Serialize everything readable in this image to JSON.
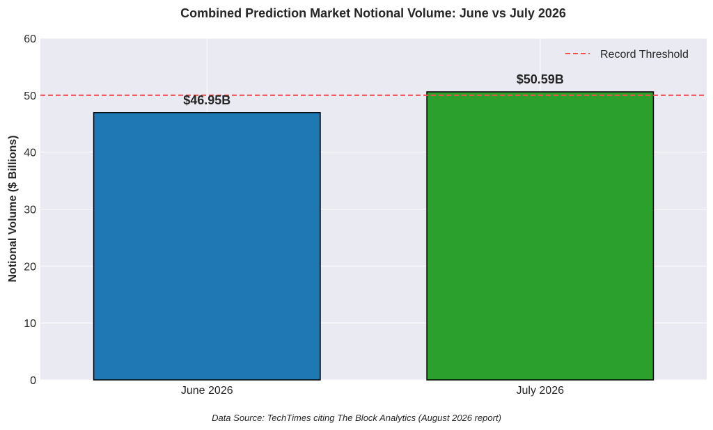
{
  "chart_data": {
    "type": "bar",
    "title": "Combined Prediction Market Notional Volume: June vs July 2026",
    "xlabel": "",
    "ylabel": "Notional Volume ($ Billions)",
    "categories": [
      "June 2026",
      "July 2026"
    ],
    "values": [
      46.95,
      50.59
    ],
    "value_labels": [
      "$46.95B",
      "$50.59B"
    ],
    "bar_colors": [
      "#1f77b4",
      "#2ca02c"
    ],
    "bar_edge_color": "#000000",
    "ylim": [
      0,
      60
    ],
    "yticks": [
      0,
      10,
      20,
      30,
      40,
      50,
      60
    ],
    "ytick_labels": [
      "0",
      "10",
      "20",
      "30",
      "40",
      "50",
      "60"
    ],
    "grid": true,
    "background_color": "#eaeaf2",
    "reference_line": {
      "value": 50,
      "label": "Record Threshold",
      "color": "#ff4d4d",
      "style": "dashed"
    },
    "legend_position": "top-right",
    "footnote": "Data Source: TechTimes citing The Block Analytics (August 2026 report)"
  }
}
